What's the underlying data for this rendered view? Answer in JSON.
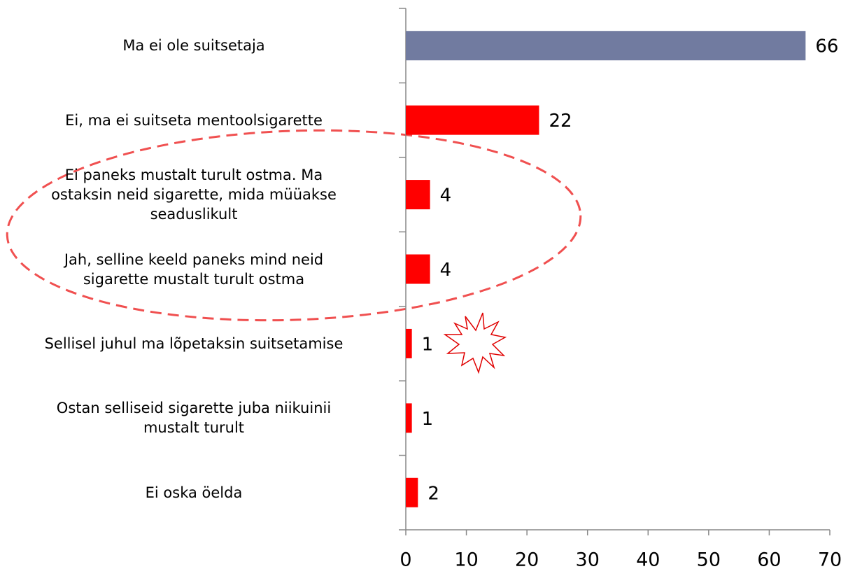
{
  "chart_data": {
    "type": "bar",
    "orientation": "horizontal",
    "categories": [
      "Ma ei ole suitsetaja",
      "Ei, ma ei suitseta mentoolsigarette",
      "Ei paneks mustalt turult ostma. Ma\nostaksin neid sigarette, mida müüakse\nseaduslikult",
      "Jah, selline keeld paneks mind neid\nsigarette mustalt turult ostma",
      "Sellisel juhul ma lõpetaksin suitsetamise",
      "Ostan selliseid sigarette juba niikuinii\nmustalt turult",
      "Ei oska öelda"
    ],
    "values": [
      66,
      22,
      4,
      4,
      1,
      1,
      2
    ],
    "colors": [
      "#717ba0",
      "#ff0000",
      "#ff0000",
      "#ff0000",
      "#ff0000",
      "#ff0000",
      "#ff0000"
    ],
    "xlim": [
      0,
      70
    ],
    "xticks": [
      0,
      10,
      20,
      30,
      40,
      50,
      60,
      70
    ]
  }
}
